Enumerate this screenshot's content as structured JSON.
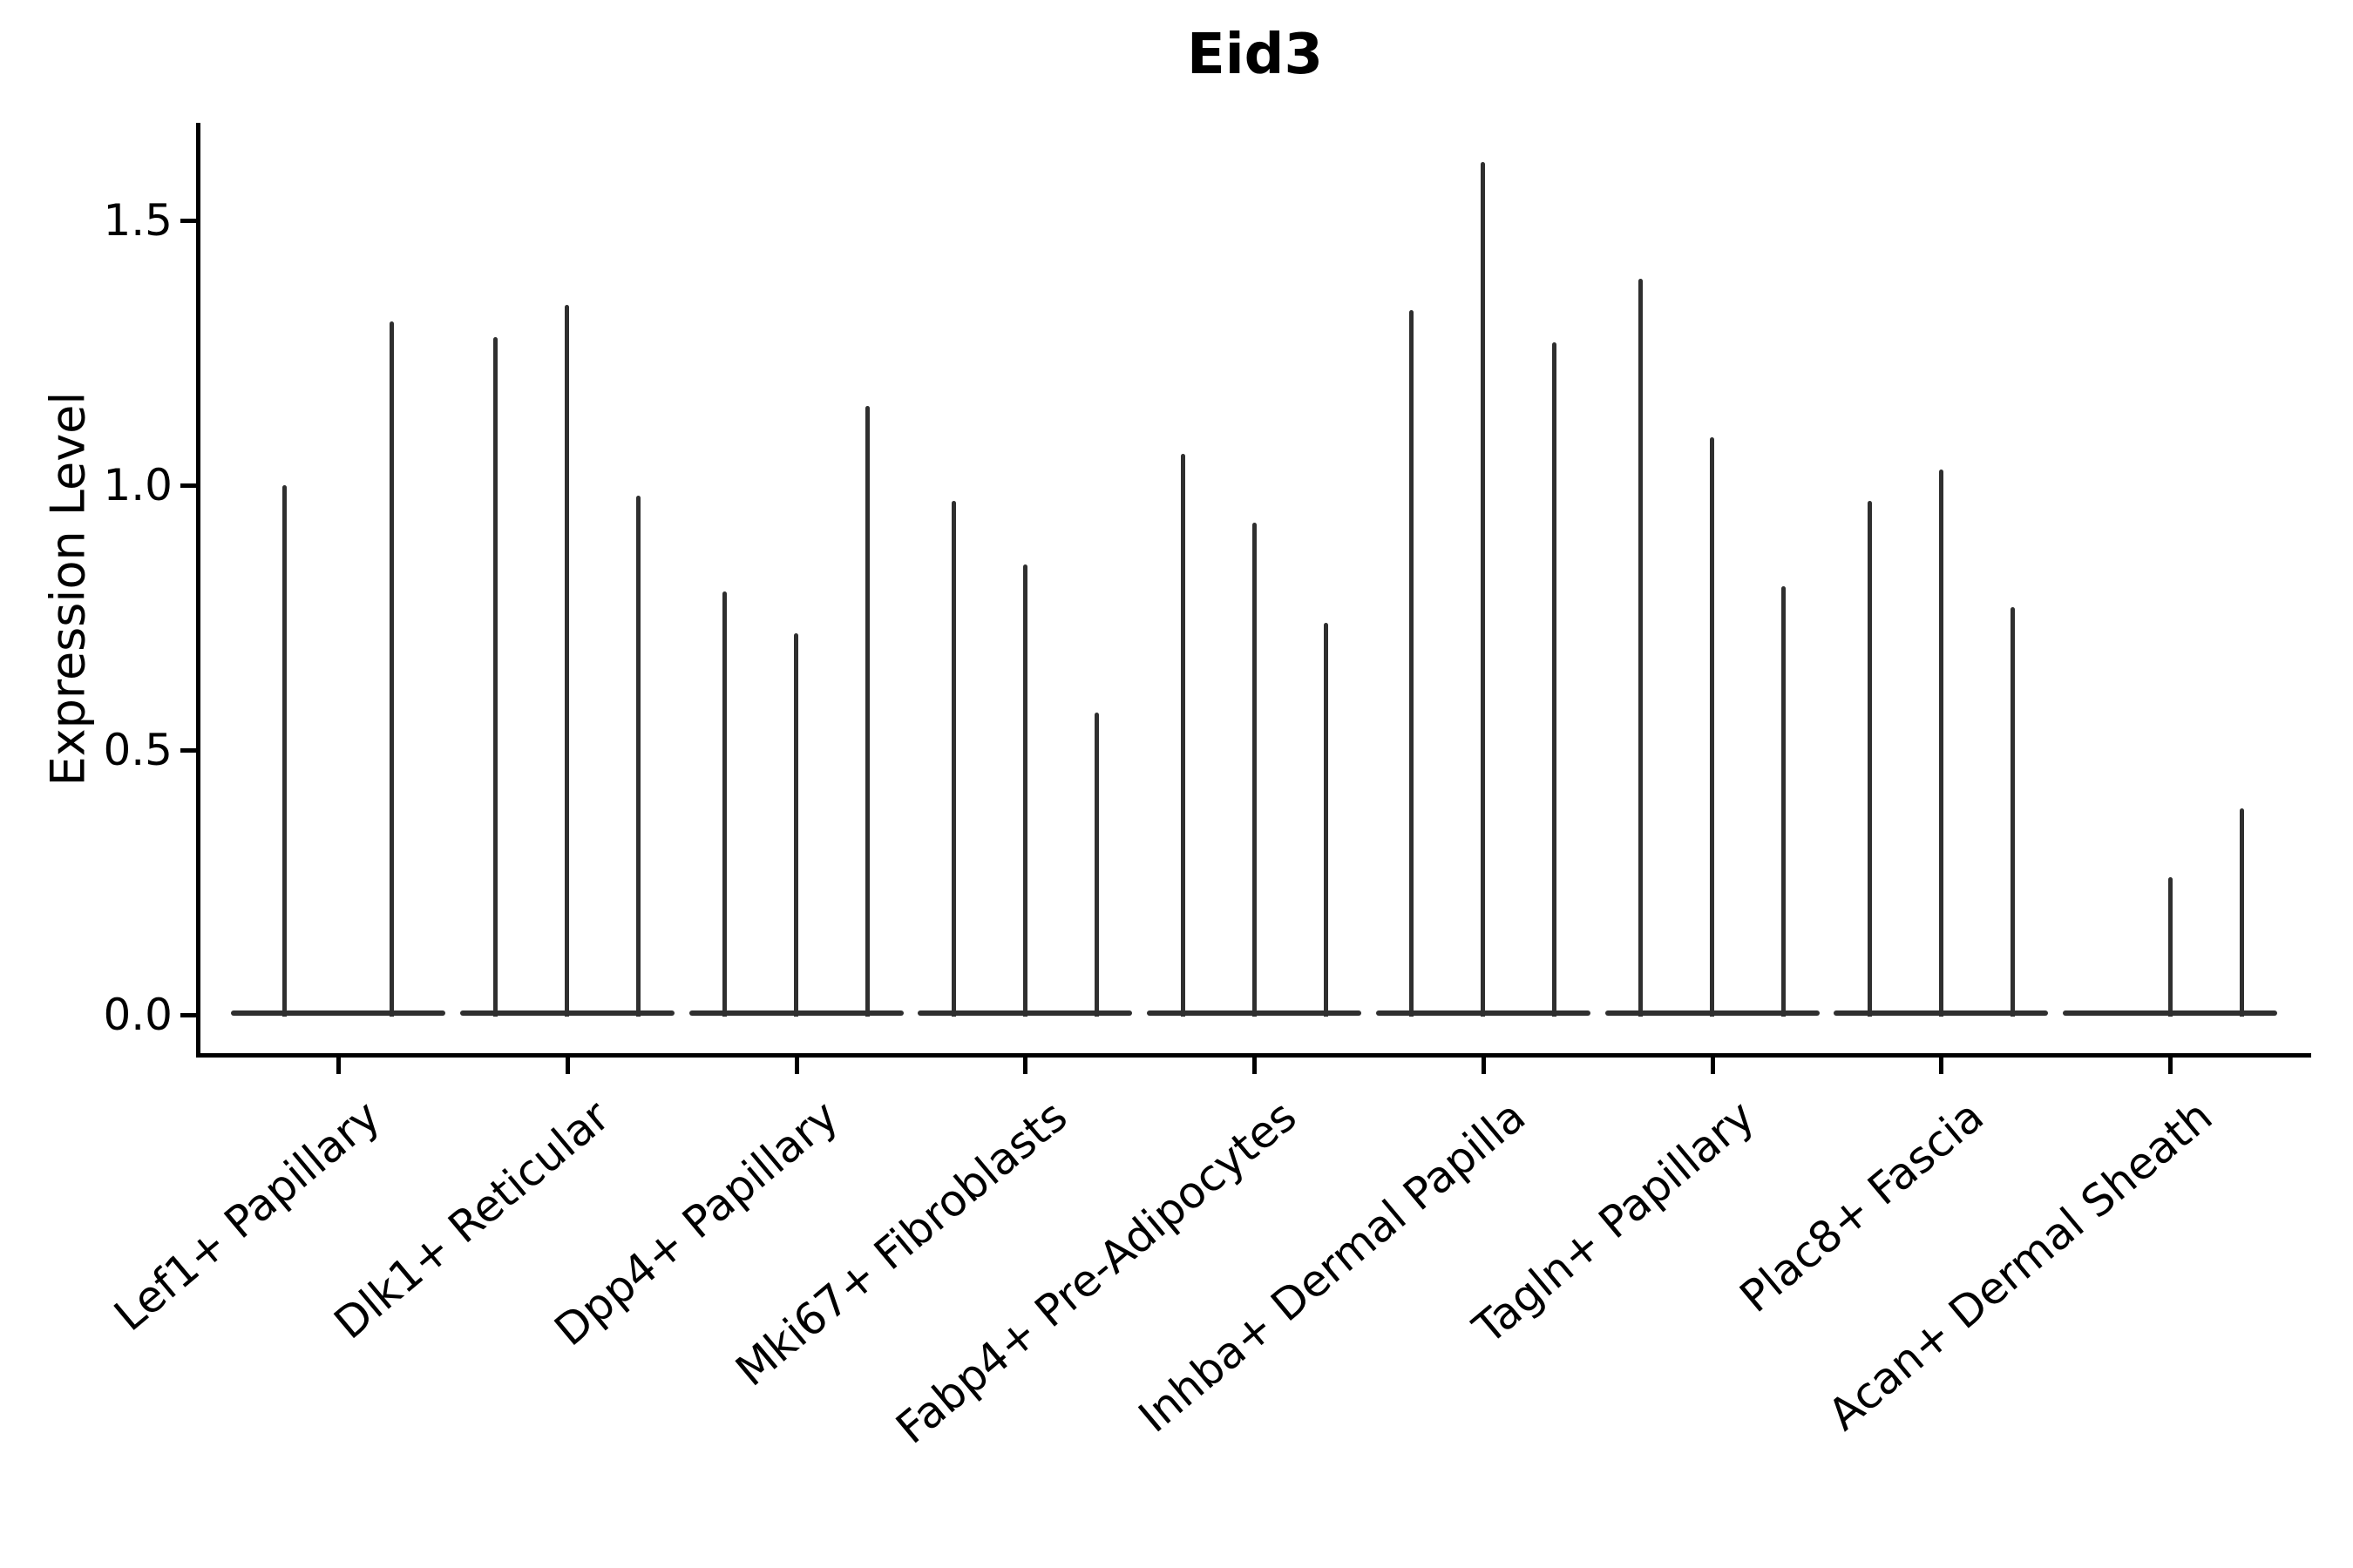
{
  "chart_data": {
    "type": "violin",
    "title": "Eid3",
    "xlabel": "",
    "ylabel": "Expression Level",
    "ylim": [
      0,
      1.68
    ],
    "yticks": [
      0.0,
      0.5,
      1.0,
      1.5
    ],
    "grid": false,
    "legend": null,
    "style_note": "scanpy/seaborn-style violin plot; each violin is a near-zero-width vertical spike rising from a flat wide base at expression 0 to the violin maximum; top and right spines hidden; x tick labels rotated 40 degrees",
    "categories": [
      "Lef1+ Papillary",
      "Dlk1+ Reticular",
      "Dpp4+ Papillary",
      "Mki67+ Fibroblasts",
      "Fabp4+ Pre-Adipocytes",
      "Inhba+ Dermal Papilla",
      "Tagln+ Papillary",
      "Plac8+ Fascia",
      "Acan+ Dermal Sheath"
    ],
    "series": [
      {
        "category": "Lef1+ Papillary",
        "violin_maxima": [
          1.0,
          1.31
        ]
      },
      {
        "category": "Dlk1+ Reticular",
        "violin_maxima": [
          1.28,
          1.34,
          0.98
        ]
      },
      {
        "category": "Dpp4+ Papillary",
        "violin_maxima": [
          0.8,
          0.72,
          1.15
        ]
      },
      {
        "category": "Mki67+ Fibroblasts",
        "violin_maxima": [
          0.97,
          0.85,
          0.57
        ]
      },
      {
        "category": "Fabp4+ Pre-Adipocytes",
        "violin_maxima": [
          1.06,
          0.93,
          0.74
        ]
      },
      {
        "category": "Inhba+ Dermal Papilla",
        "violin_maxima": [
          1.33,
          1.61,
          1.27
        ]
      },
      {
        "category": "Tagln+ Papillary",
        "violin_maxima": [
          1.39,
          1.09,
          0.81
        ]
      },
      {
        "category": "Plac8+ Fascia",
        "violin_maxima": [
          0.97,
          1.03,
          0.77
        ]
      },
      {
        "category": "Acan+ Dermal Sheath",
        "violin_maxima": [
          0.0,
          0.26,
          0.39
        ]
      }
    ]
  },
  "colors": {
    "background": "#ffffff",
    "violin": "#2f2f2f",
    "axis": "#000000",
    "text": "#000000"
  }
}
